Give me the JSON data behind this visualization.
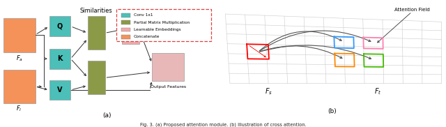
{
  "background": "#ffffff",
  "orange_color": "#F4925A",
  "teal_color": "#4BBFB8",
  "olive_color": "#8B9A46",
  "pink_light_color": "#F2AAAA",
  "pink_output_color": "#E8B8B8",
  "legend_border_color": "#E04040",
  "part_a_label": "(a)",
  "part_b_label": "(b)",
  "attention_field_label": "Attention Field",
  "fs_label": "$F_s$",
  "ft_label": "$F_t$",
  "fa_label": "$F_a$",
  "fl_label": "$F_l$",
  "similarities_label": "Similarities",
  "output_label": "Output Features",
  "legend_items": [
    "Conv 1x1",
    "Partial Matrix Multiplication",
    "Learnable Embeddings",
    "Concatenate"
  ],
  "legend_colors": [
    "#4BBFB8",
    "#8B9A46",
    "#F2AAAA",
    "#F4925A"
  ],
  "caption": "Fig. 3. (a) Proposed attention module. (b) Illustration of cross attention.",
  "grid_color": "#C8C8C8",
  "arc_color": "#555555",
  "arrow_color": "#333333"
}
